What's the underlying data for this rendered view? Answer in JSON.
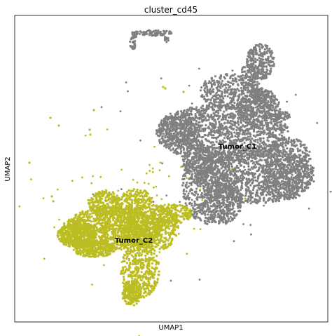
{
  "chart_data": {
    "type": "scatter",
    "title": "cluster_cd45",
    "xlabel": "UMAP1",
    "ylabel": "UMAP2",
    "ticks": "none",
    "grid": false,
    "legend": "on data",
    "series": [
      {
        "name": "Tumor_C1",
        "color": "#808080"
      },
      {
        "name": "Tumor_C2",
        "color": "#bcbd22"
      }
    ]
  }
}
